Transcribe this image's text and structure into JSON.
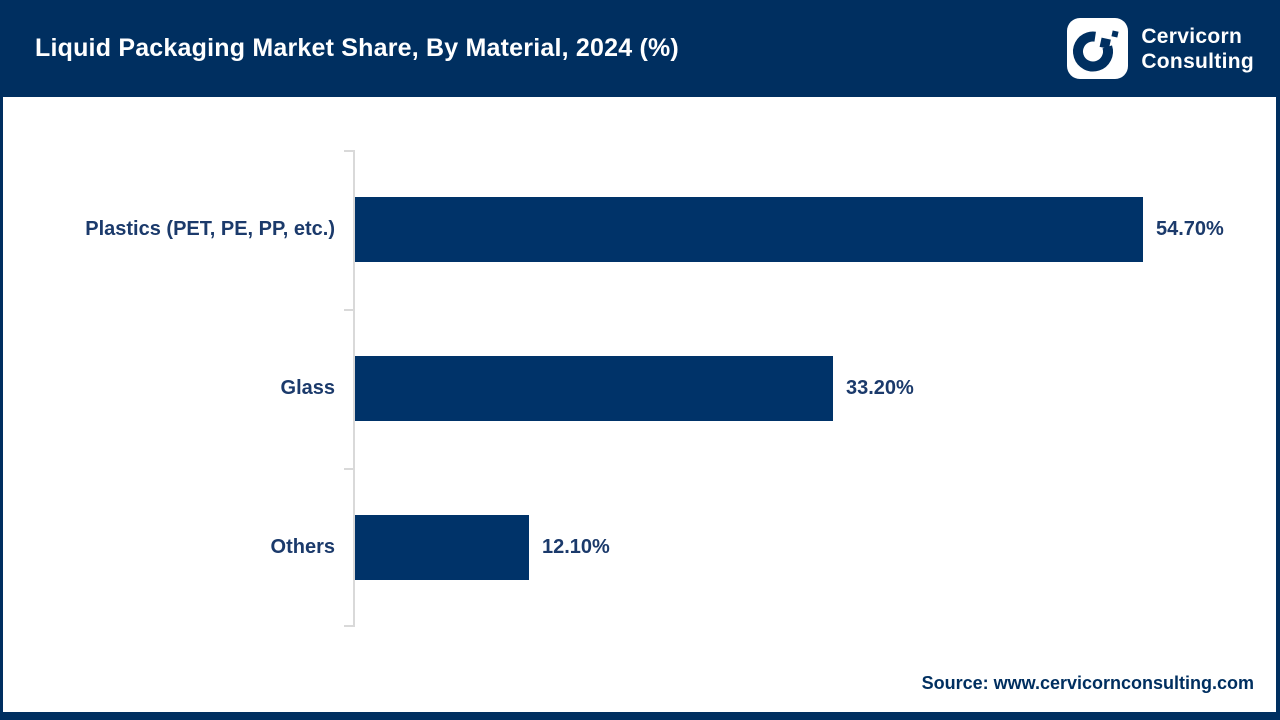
{
  "header": {
    "title": "Liquid Packaging Market Share, By Material, 2024 (%)",
    "logo": {
      "line1": "Cervicorn",
      "line2": "Consulting"
    }
  },
  "chart_data": {
    "type": "bar",
    "orientation": "horizontal",
    "title": "Liquid Packaging Market Share, By Material, 2024 (%)",
    "categories": [
      "Plastics (PET, PE, PP, etc.)",
      "Glass",
      "Others"
    ],
    "values": [
      54.7,
      33.2,
      12.1
    ],
    "value_labels": [
      "54.70%",
      "33.20%",
      "12.10%"
    ],
    "unit": "%",
    "xlim": [
      0,
      60
    ],
    "grid": false,
    "legend": false,
    "bar_color": "#003369"
  },
  "footer": {
    "source": "Source: www.cervicornconsulting.com"
  },
  "colors": {
    "header_bg": "#002f60",
    "frame": "#002f60",
    "bar": "#003369",
    "label_text": "#1b3a6b",
    "axis_line": "#d9d9d9",
    "background": "#ffffff",
    "title_text": "#ffffff"
  }
}
